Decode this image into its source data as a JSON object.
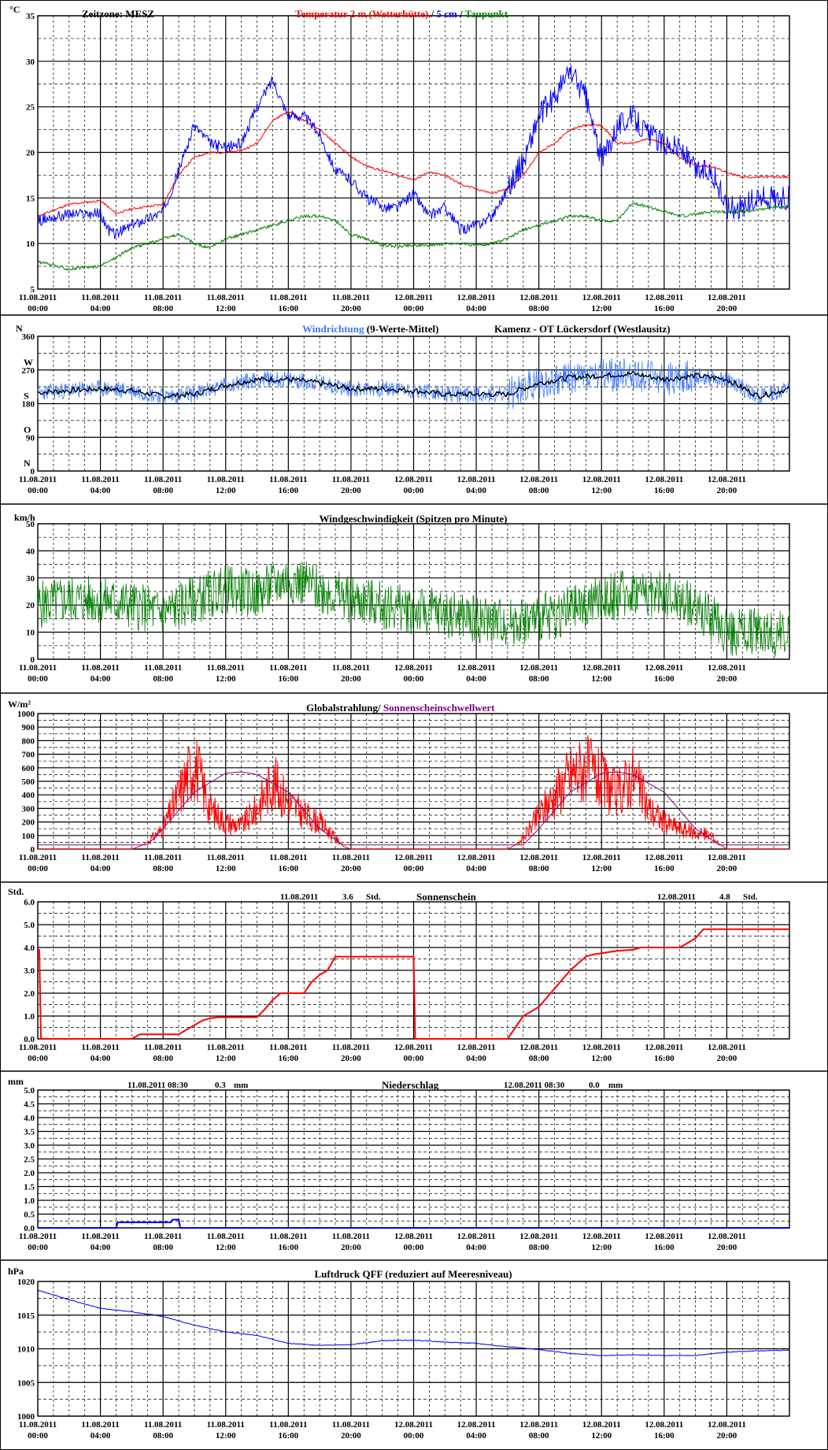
{
  "x_tick_labels": [
    [
      "11.08.2011",
      "00:00"
    ],
    [
      "11.08.2011",
      "04:00"
    ],
    [
      "11.08.2011",
      "08:00"
    ],
    [
      "11.08.2011",
      "12:00"
    ],
    [
      "11.08.2011",
      "16:00"
    ],
    [
      "11.08.2011",
      "20:00"
    ],
    [
      "12.08.2011",
      "00:00"
    ],
    [
      "12.08.2011",
      "04:00"
    ],
    [
      "12.08.2011",
      "08:00"
    ],
    [
      "12.08.2011",
      "12:00"
    ],
    [
      "12.08.2011",
      "16:00"
    ],
    [
      "12.08.2011",
      "20:00"
    ]
  ],
  "colors": {
    "red": "#ff0000",
    "blue": "#0000ff",
    "green": "#008000",
    "purple": "#800080",
    "black": "#000000",
    "lightblue": "#3c78ff"
  },
  "panels": {
    "temp": {
      "unit": "°C",
      "tz": "Zeitzone: MESZ",
      "title_parts": [
        {
          "text": "Temperatur 2 m (Wetterhütte)",
          "color": "red"
        },
        {
          "text": "  /  ",
          "color": "black"
        },
        {
          "text": "5 cm",
          "color": "blue"
        },
        {
          "text": " / ",
          "color": "black"
        },
        {
          "text": "Taupunkt",
          "color": "green"
        }
      ],
      "ylim": [
        5,
        35
      ],
      "yticks": [
        5,
        10,
        15,
        20,
        25,
        30,
        35
      ]
    },
    "wind_dir": {
      "unit": "N",
      "title_left": "Windrichtung",
      "title_left2": " (9-Werte-Mittel)",
      "title_right": "Kamenz - OT Lückersdorf (Westlausitz)",
      "ylim": [
        0,
        360
      ],
      "yticks": [
        0,
        90,
        180,
        270,
        360
      ],
      "compass": [
        {
          "v": 270,
          "t": "W"
        },
        {
          "v": 180,
          "t": "S"
        },
        {
          "v": 90,
          "t": "O"
        },
        {
          "v": 0,
          "t": "N"
        }
      ]
    },
    "wind_speed": {
      "unit": "km/h",
      "title": "Windgeschwindigkeit (Spitzen pro Minute)",
      "ylim": [
        0,
        50
      ],
      "yticks": [
        0,
        10,
        20,
        30,
        40,
        50
      ]
    },
    "radiation": {
      "unit": "W/m²",
      "title1": "Globalstrahlung/ ",
      "title2": "Sonnenscheinschwellwert",
      "ylim": [
        0,
        1000
      ],
      "yticks": [
        0,
        100,
        200,
        300,
        400,
        500,
        600,
        700,
        800,
        900,
        1000
      ]
    },
    "sunshine": {
      "unit": "Std.",
      "title": "Sonnenschein",
      "day1": "11.08.2011",
      "day1_val": "3.6",
      "day1_unit": "Std.",
      "day2": "12.08.2011",
      "day2_val": "4.8",
      "day2_unit": "Std.",
      "ylim": [
        0,
        6
      ],
      "yticks": [
        "0.0",
        "1.0",
        "2.0",
        "3.0",
        "4.0",
        "5.0",
        "6.0"
      ]
    },
    "precip": {
      "unit": "mm",
      "title": "Niederschlag",
      "day1": "11.08.2011 08:30",
      "day1_val": "0.3",
      "day1_unit": "mm",
      "day2": "12.08.2011 08:30",
      "day2_val": "0.0",
      "day2_unit": "mm",
      "ylim": [
        0,
        5
      ],
      "yticks": [
        "0.0",
        "0.5",
        "1.0",
        "1.5",
        "2.0",
        "2.5",
        "3.0",
        "3.5",
        "4.0",
        "4.5",
        "5.0"
      ]
    },
    "pressure": {
      "unit": "hPa",
      "title": "Luftdruck QFF (reduziert auf Meeresniveau)",
      "ylim": [
        1000,
        1020
      ],
      "yticks": [
        1000,
        1005,
        1010,
        1015,
        1020
      ]
    }
  },
  "chart_data": [
    {
      "type": "line",
      "title": "Temperatur 2 m (Wetterhütte) / 5 cm / Taupunkt",
      "ylabel": "°C",
      "ylim": [
        5,
        35
      ],
      "x_unit": "hours since 11.08.2011 00:00",
      "series": [
        {
          "name": "Temperatur 2 m (Wetterhütte)",
          "color": "red",
          "x": [
            0,
            2,
            4,
            5,
            6,
            8,
            9,
            10,
            11,
            12,
            13,
            14,
            15,
            16,
            17,
            18,
            19,
            20,
            21,
            22,
            23,
            24,
            25,
            26,
            27,
            28,
            29,
            30,
            31,
            32,
            33,
            34,
            35,
            36,
            37,
            38,
            39,
            40,
            41,
            42,
            43,
            44,
            45,
            46,
            47,
            48
          ],
          "y": [
            13,
            14.3,
            14.7,
            13.3,
            13.8,
            14.3,
            17.5,
            19.5,
            20,
            20,
            20.2,
            21,
            23.5,
            24.5,
            23.5,
            22.5,
            21,
            19.5,
            18.5,
            18,
            17.5,
            17,
            17.8,
            17.5,
            16.5,
            16,
            15.5,
            16,
            17.5,
            20,
            21,
            22.5,
            23,
            23,
            21,
            21,
            21.5,
            21,
            19.5,
            18.5,
            18.5,
            17.8,
            17.3,
            17.3,
            17.3,
            17.3
          ]
        },
        {
          "name": "5 cm",
          "color": "blue",
          "x": [
            0,
            2,
            4,
            4.5,
            5,
            6,
            8,
            9,
            10,
            11,
            12,
            13,
            14,
            15,
            16,
            17,
            18,
            19,
            20,
            21,
            22,
            23,
            24,
            25,
            26,
            27,
            28,
            29,
            30,
            31,
            32,
            33,
            34,
            35,
            36,
            37,
            38,
            39,
            40,
            41,
            42,
            43,
            44,
            45,
            46,
            47,
            48
          ],
          "y": [
            12.5,
            13.2,
            13.3,
            11.5,
            11,
            12,
            13.5,
            18,
            23,
            21,
            20.5,
            21,
            25,
            28,
            24,
            24,
            22,
            18,
            17,
            15,
            14,
            14,
            15.5,
            13,
            14,
            11.5,
            12,
            13,
            16,
            19,
            24,
            26,
            29,
            26,
            19,
            23,
            24,
            22,
            21,
            20.5,
            18,
            18,
            14,
            14,
            15,
            15,
            15
          ]
        },
        {
          "name": "Taupunkt",
          "color": "green",
          "x": [
            0,
            2,
            4,
            6,
            8,
            9,
            10,
            11,
            12,
            13,
            14,
            15,
            16,
            17,
            18,
            19,
            20,
            21,
            22,
            23,
            24,
            25,
            26,
            27,
            28,
            29,
            30,
            31,
            32,
            33,
            34,
            35,
            36,
            37,
            38,
            39,
            40,
            41,
            42,
            43,
            44,
            45,
            46,
            47,
            48
          ],
          "y": [
            8,
            7.2,
            7.5,
            9.5,
            10.5,
            11,
            10,
            9.5,
            10.5,
            11,
            11.5,
            12,
            12.5,
            13,
            13,
            12.5,
            11,
            10.5,
            9.8,
            9.7,
            9.8,
            9.8,
            10,
            10,
            9.8,
            10,
            10.5,
            11.5,
            12,
            12.5,
            13,
            13,
            12.5,
            12.5,
            14.5,
            14,
            13.5,
            13,
            13.2,
            13.5,
            13.5,
            13.5,
            13.7,
            14,
            14
          ]
        }
      ]
    },
    {
      "type": "line",
      "title": "Windrichtung (9-Werte-Mittel)",
      "ylabel": "N",
      "ylim": [
        0,
        360
      ],
      "x_unit": "hours since 11.08.2011 00:00",
      "series": [
        {
          "name": "Windrichtung",
          "x": [
            0,
            2,
            4,
            6,
            8,
            10,
            12,
            14,
            16,
            18,
            20,
            22,
            24,
            26,
            28,
            30,
            32,
            34,
            36,
            38,
            40,
            42,
            44,
            46,
            48
          ],
          "y": [
            210,
            215,
            220,
            215,
            200,
            205,
            230,
            245,
            245,
            235,
            220,
            220,
            215,
            205,
            205,
            205,
            235,
            250,
            255,
            260,
            245,
            255,
            245,
            200,
            220
          ]
        }
      ]
    },
    {
      "type": "line",
      "title": "Windgeschwindigkeit (Spitzen pro Minute)",
      "ylabel": "km/h",
      "ylim": [
        0,
        50
      ],
      "x_unit": "hours since 11.08.2011 00:00",
      "series": [
        {
          "name": "Windgeschwindigkeit",
          "x": [
            0,
            2,
            4,
            6,
            8,
            10,
            12,
            14,
            16,
            18,
            20,
            22,
            24,
            26,
            28,
            30,
            32,
            34,
            36,
            38,
            40,
            42,
            44,
            46,
            48
          ],
          "y": [
            20,
            22,
            22,
            20,
            17,
            22,
            26,
            24,
            30,
            26,
            22,
            20,
            18,
            17,
            15,
            14,
            15,
            18,
            22,
            25,
            24,
            20,
            10,
            11,
            9
          ]
        }
      ]
    },
    {
      "type": "line",
      "title": "Globalstrahlung/ Sonnenscheinschwellwert",
      "ylabel": "W/m²",
      "ylim": [
        0,
        1000
      ],
      "x_unit": "hours since 11.08.2011 00:00",
      "series": [
        {
          "name": "Globalstrahlung",
          "x": [
            0,
            6,
            6.5,
            7,
            8,
            9,
            10,
            11,
            12,
            13,
            14,
            15,
            16,
            17,
            18,
            19,
            19.5,
            20,
            24,
            30,
            30.5,
            31,
            32,
            33,
            34,
            35,
            36,
            37,
            38,
            39,
            40,
            41,
            42,
            43,
            43.5,
            44,
            48
          ],
          "y": [
            0,
            0,
            20,
            50,
            150,
            400,
            650,
            300,
            200,
            170,
            300,
            500,
            350,
            250,
            200,
            80,
            20,
            0,
            0,
            0,
            30,
            80,
            250,
            400,
            550,
            600,
            500,
            400,
            550,
            300,
            200,
            150,
            120,
            100,
            40,
            0,
            0
          ]
        },
        {
          "name": "Sonnenscheinschwellwert",
          "x": [
            0,
            7,
            8,
            10,
            12,
            13,
            14,
            16,
            18,
            19.5,
            20,
            24,
            31,
            32,
            34,
            36,
            37,
            38,
            40,
            42,
            43.5,
            44,
            48
          ],
          "y": [
            30,
            30,
            150,
            420,
            560,
            570,
            550,
            420,
            150,
            30,
            30,
            30,
            30,
            150,
            420,
            560,
            570,
            550,
            420,
            150,
            30,
            30,
            30
          ]
        }
      ]
    },
    {
      "type": "line",
      "title": "Sonnenschein",
      "ylabel": "Std.",
      "ylim": [
        0,
        6
      ],
      "x_unit": "hours since 11.08.2011 00:00",
      "series": [
        {
          "name": "Sonnenschein",
          "x": [
            0,
            0.1,
            0.2,
            6,
            6.5,
            9,
            9.5,
            10,
            10.5,
            11,
            11.5,
            12,
            13,
            14,
            14.5,
            15,
            15.5,
            16,
            17,
            17.5,
            18,
            18.5,
            19,
            19.5,
            24,
            24.1,
            24.2,
            30,
            30.5,
            31,
            31.5,
            32,
            32.5,
            33,
            33.5,
            34,
            34.5,
            35,
            35.5,
            36,
            36.5,
            37,
            38,
            38.5,
            39,
            39.5,
            40,
            41,
            41.5,
            42,
            42.5,
            43,
            48
          ],
          "y": [
            3.9,
            3.9,
            0,
            0,
            0.2,
            0.2,
            0.4,
            0.6,
            0.8,
            0.9,
            0.95,
            0.95,
            0.95,
            0.95,
            1.3,
            1.7,
            2.0,
            2.0,
            2.0,
            2.5,
            2.8,
            3.0,
            3.6,
            3.6,
            3.6,
            0,
            0,
            0,
            0.5,
            1.0,
            1.2,
            1.4,
            1.8,
            2.2,
            2.6,
            3.0,
            3.3,
            3.6,
            3.7,
            3.75,
            3.8,
            3.85,
            3.9,
            4.0,
            4.0,
            4.0,
            4.0,
            4.0,
            4.2,
            4.4,
            4.8,
            4.8,
            4.8
          ]
        }
      ]
    },
    {
      "type": "line",
      "title": "Niederschlag",
      "ylabel": "mm",
      "ylim": [
        0,
        5
      ],
      "x_unit": "hours since 11.08.2011 00:00",
      "series": [
        {
          "name": "Niederschlag",
          "x": [
            0,
            5,
            5.1,
            8.5,
            8.6,
            9,
            9.1,
            48
          ],
          "y": [
            0,
            0,
            0.2,
            0.2,
            0.3,
            0.3,
            0,
            0
          ]
        }
      ]
    },
    {
      "type": "line",
      "title": "Luftdruck QFF (reduziert auf Meeresniveau)",
      "ylabel": "hPa",
      "ylim": [
        1000,
        1020
      ],
      "x_unit": "hours since 11.08.2011 00:00",
      "series": [
        {
          "name": "Luftdruck QFF",
          "x": [
            0,
            2,
            4,
            6,
            8,
            10,
            12,
            14,
            16,
            18,
            20,
            22,
            24,
            26,
            28,
            30,
            32,
            34,
            36,
            38,
            40,
            42,
            44,
            46,
            48
          ],
          "y": [
            1018.7,
            1017.3,
            1016,
            1015.5,
            1014.8,
            1013.5,
            1012.5,
            1012,
            1010.8,
            1010.5,
            1010.6,
            1011.2,
            1011.3,
            1011,
            1010.8,
            1010.3,
            1009.9,
            1009.3,
            1009,
            1009.1,
            1009,
            1009,
            1009.5,
            1009.7,
            1009.8
          ]
        }
      ]
    }
  ]
}
